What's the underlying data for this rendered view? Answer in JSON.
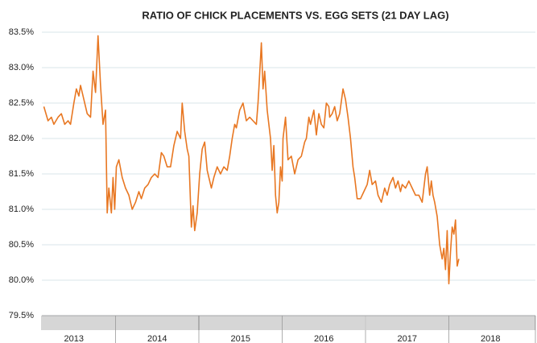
{
  "chart_data": {
    "type": "line",
    "title": "RATIO OF CHICK PLACEMENTS VS. EGG SETS (21 DAY LAG)",
    "color": "#e87722",
    "ylim": [
      79.5,
      83.5
    ],
    "yticks": [
      {
        "value": 79.5,
        "label": "79.5%"
      },
      {
        "value": 80.0,
        "label": "80.0%"
      },
      {
        "value": 80.5,
        "label": "80.5%"
      },
      {
        "value": 81.0,
        "label": "81.0%"
      },
      {
        "value": 81.5,
        "label": "81.5%"
      },
      {
        "value": 82.0,
        "label": "82.0%"
      },
      {
        "value": 82.5,
        "label": "82.5%"
      },
      {
        "value": 83.0,
        "label": "83.0%"
      },
      {
        "value": 83.5,
        "label": "83.5%"
      }
    ],
    "grid": true,
    "xlim": [
      2013,
      2019
    ],
    "year_labels": [
      "2013",
      "2014",
      "2015",
      "2016",
      "2017",
      "2018"
    ],
    "x": [
      2013.14,
      2013.19,
      2013.23,
      2013.26,
      2013.31,
      2013.35,
      2013.39,
      2013.43,
      2013.46,
      2013.5,
      2013.53,
      2013.56,
      2013.58,
      2013.62,
      2013.66,
      2013.7,
      2013.73,
      2013.76,
      2013.79,
      2013.82,
      2013.85,
      2013.88,
      2013.9,
      2013.92,
      2013.95,
      2013.97,
      2013.99,
      2014.01,
      2014.04,
      2014.08,
      2014.12,
      2014.16,
      2014.2,
      2014.24,
      2014.28,
      2014.31,
      2014.35,
      2014.39,
      2014.43,
      2014.47,
      2014.51,
      2014.55,
      2014.58,
      2014.62,
      2014.66,
      2014.7,
      2014.74,
      2014.78,
      2014.8,
      2014.83,
      2014.86,
      2014.88,
      2014.91,
      2014.93,
      2014.95,
      2014.98,
      2015.01,
      2015.04,
      2015.07,
      2015.1,
      2015.13,
      2015.15,
      2015.18,
      2015.22,
      2015.26,
      2015.3,
      2015.34,
      2015.37,
      2015.4,
      2015.43,
      2015.45,
      2015.49,
      2015.53,
      2015.57,
      2015.61,
      2015.65,
      2015.69,
      2015.71,
      2015.72,
      2015.75,
      2015.77,
      2015.79,
      2015.82,
      2015.86,
      2015.88,
      2015.9,
      2015.92,
      2015.94,
      2015.96,
      2015.98,
      2016.0,
      2016.01,
      2016.04,
      2016.07,
      2016.11,
      2016.15,
      2016.19,
      2016.23,
      2016.27,
      2016.29,
      2016.32,
      2016.34,
      2016.36,
      2016.38,
      2016.41,
      2016.44,
      2016.47,
      2016.5,
      2016.53,
      2016.56,
      2016.57,
      2016.6,
      2016.63,
      2016.66,
      2016.69,
      2016.73,
      2016.76,
      2016.79,
      2016.82,
      2016.85,
      2016.87,
      2016.9,
      2016.94,
      2016.98,
      2017.02,
      2017.05,
      2017.08,
      2017.12,
      2017.15,
      2017.19,
      2017.23,
      2017.26,
      2017.29,
      2017.33,
      2017.36,
      2017.39,
      2017.42,
      2017.44,
      2017.48,
      2017.52,
      2017.56,
      2017.6,
      2017.64,
      2017.68,
      2017.72,
      2017.74,
      2017.77,
      2017.79,
      2017.81,
      2017.83,
      2017.86,
      2017.89,
      2017.92,
      2017.94,
      2017.96,
      2017.98,
      2018.0,
      2018.02,
      2018.04,
      2018.06,
      2018.08,
      2018.1,
      2018.12
    ],
    "values": [
      82.45,
      82.25,
      82.3,
      82.2,
      82.3,
      82.35,
      82.2,
      82.25,
      82.2,
      82.5,
      82.7,
      82.6,
      82.75,
      82.55,
      82.35,
      82.3,
      82.95,
      82.65,
      83.45,
      82.75,
      82.2,
      82.4,
      80.95,
      81.3,
      80.95,
      81.45,
      81.0,
      81.6,
      81.7,
      81.45,
      81.3,
      81.2,
      81.0,
      81.1,
      81.25,
      81.15,
      81.3,
      81.35,
      81.45,
      81.5,
      81.45,
      81.8,
      81.75,
      81.6,
      81.6,
      81.9,
      82.1,
      82.0,
      82.5,
      82.1,
      81.85,
      81.75,
      80.75,
      81.05,
      80.7,
      80.95,
      81.5,
      81.85,
      81.95,
      81.55,
      81.4,
      81.3,
      81.45,
      81.6,
      81.5,
      81.6,
      81.55,
      81.75,
      82.0,
      82.2,
      82.15,
      82.4,
      82.5,
      82.25,
      82.3,
      82.25,
      82.2,
      82.5,
      82.7,
      83.35,
      82.7,
      82.95,
      82.4,
      82.0,
      81.55,
      81.9,
      81.2,
      80.95,
      81.1,
      81.6,
      81.4,
      82.0,
      82.3,
      81.7,
      81.75,
      81.5,
      81.7,
      81.75,
      81.95,
      82.0,
      82.3,
      82.2,
      82.3,
      82.4,
      82.05,
      82.35,
      82.2,
      82.15,
      82.5,
      82.45,
      82.3,
      82.35,
      82.45,
      82.25,
      82.35,
      82.7,
      82.55,
      82.3,
      82.0,
      81.6,
      81.45,
      81.15,
      81.15,
      81.25,
      81.35,
      81.55,
      81.35,
      81.4,
      81.2,
      81.1,
      81.3,
      81.2,
      81.35,
      81.45,
      81.3,
      81.4,
      81.25,
      81.35,
      81.3,
      81.4,
      81.3,
      81.2,
      81.2,
      81.1,
      81.5,
      81.6,
      81.2,
      81.4,
      81.2,
      81.1,
      80.9,
      80.5,
      80.3,
      80.45,
      80.15,
      80.7,
      79.95,
      80.4,
      80.75,
      80.65,
      80.85,
      80.2,
      80.3
    ]
  }
}
